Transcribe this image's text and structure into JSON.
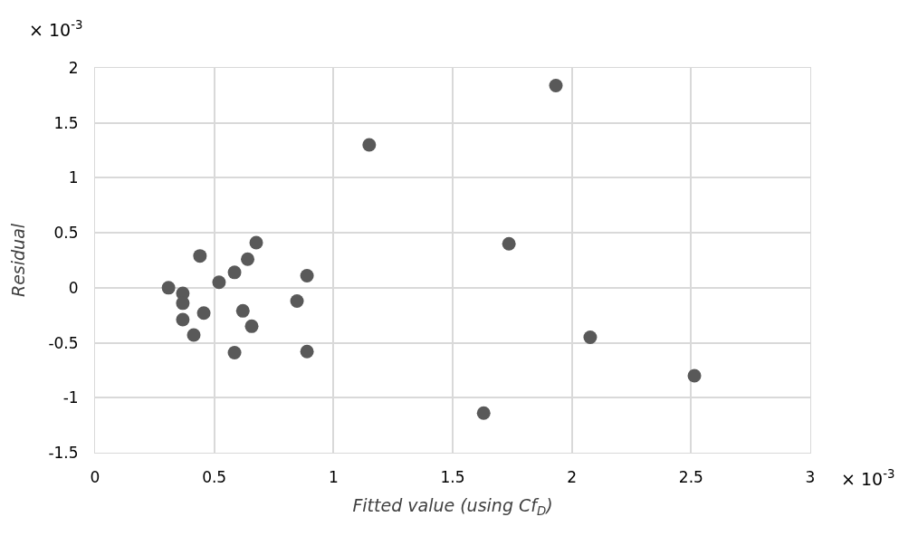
{
  "chart_data": {
    "type": "scatter",
    "xlabel": "Fitted value (using Cf$_{D}$)",
    "ylabel": "Residual",
    "annotations": [
      "× 10$^{-3}$",
      "× 10$^{-3}$"
    ],
    "x": [
      0.308,
      0.368,
      0.368,
      0.368,
      0.414,
      0.44,
      0.456,
      0.52,
      0.585,
      0.585,
      0.62,
      0.64,
      0.657,
      0.676,
      0.847,
      0.889,
      0.889,
      1.15,
      1.63,
      1.736,
      1.933,
      2.077,
      2.514
    ],
    "series": [
      {
        "color": "#595959",
        "values": [
          0.0,
          -0.05,
          -0.14,
          -0.29,
          -0.43,
          0.29,
          -0.23,
          0.05,
          0.14,
          -0.59,
          -0.21,
          0.26,
          -0.35,
          0.41,
          -0.12,
          0.11,
          -0.58,
          1.3,
          -1.14,
          0.4,
          1.84,
          -0.45,
          -0.8
        ]
      }
    ],
    "xlim": [
      0,
      3
    ],
    "xticks": [
      0,
      0.5,
      1,
      1.5,
      2,
      2.5,
      3
    ],
    "ylim": [
      -1.5,
      2
    ],
    "yticks": [
      -1.5,
      -1,
      -0.5,
      0,
      0.5,
      1,
      1.5,
      2
    ],
    "grid": true,
    "marker": "circle"
  }
}
